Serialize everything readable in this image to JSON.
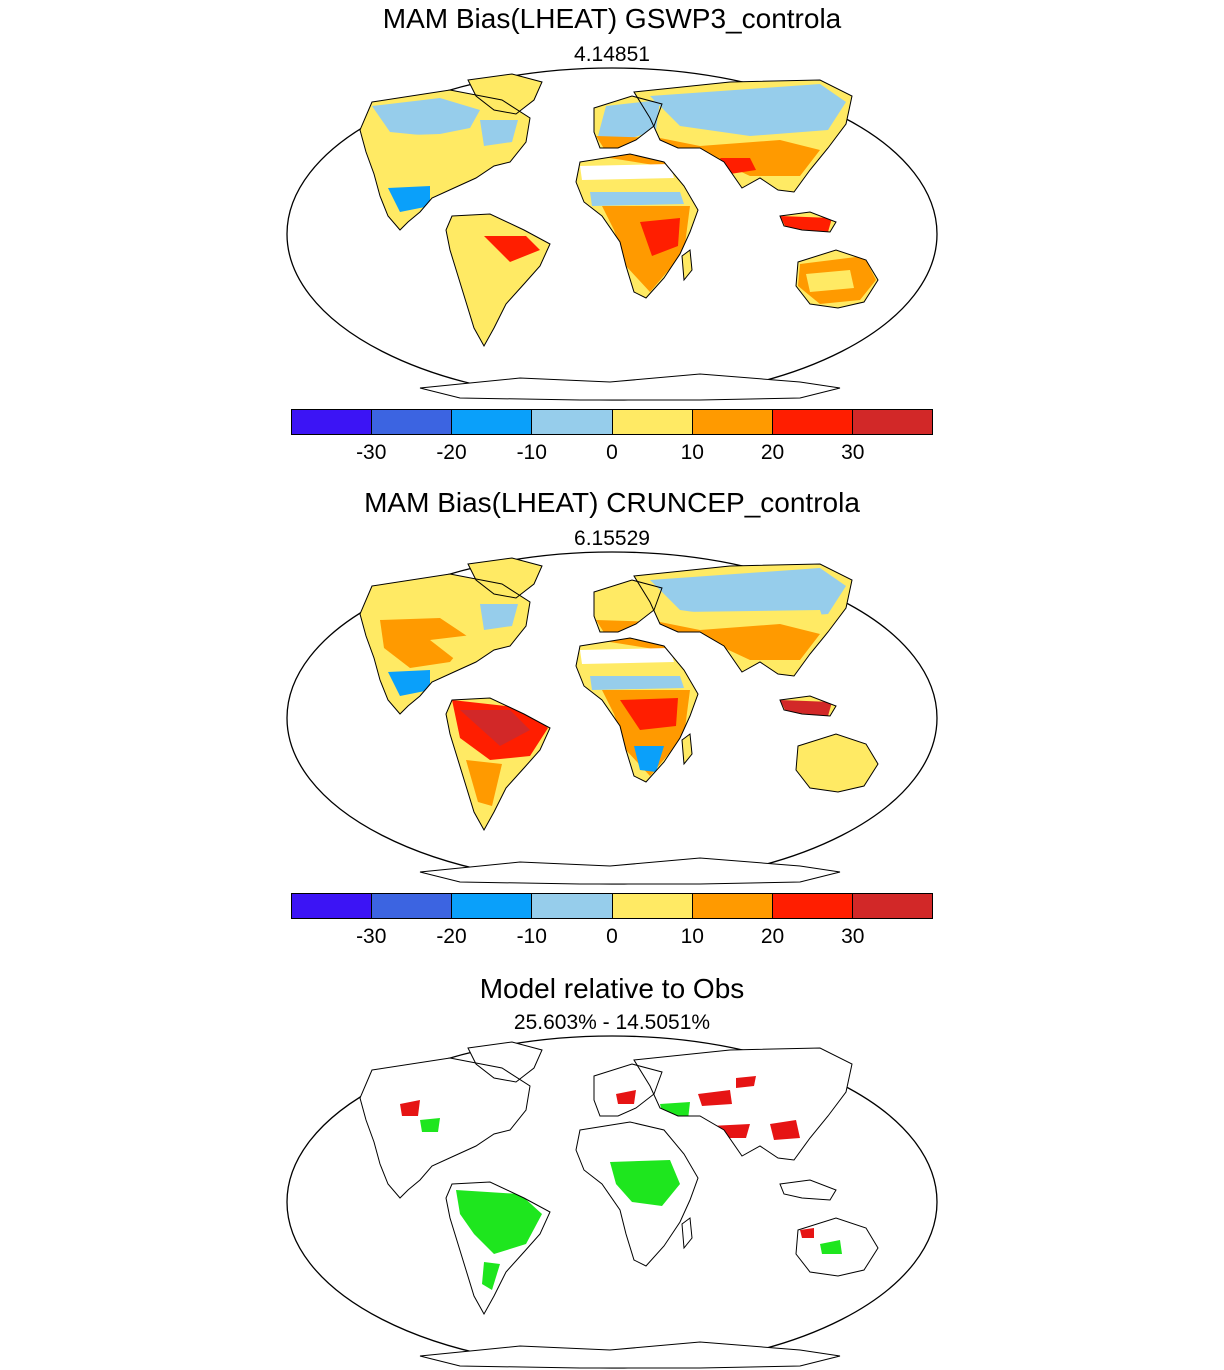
{
  "colors": {
    "bias_levels": [
      "#3c14f5",
      "#3c64e1",
      "#0aa0fa",
      "#96cdeb",
      "#ffea64",
      "#ff9a00",
      "#ff1e00",
      "#d22828"
    ],
    "relative": {
      "better": "#1ee61e",
      "worse": "#e61414"
    },
    "land_fill": "#ffffff",
    "outline": "#000000"
  },
  "panels": [
    {
      "title": "MAM Bias(LHEAT) GSWP3_controla",
      "subtitle": "4.14851",
      "map_type": "bias",
      "colorbar": {
        "ticks": [
          "-30",
          "-20",
          "-10",
          "0",
          "10",
          "20",
          "30"
        ]
      }
    },
    {
      "title": "MAM Bias(LHEAT) CRUNCEP_controla",
      "subtitle": "6.15529",
      "map_type": "bias",
      "colorbar": {
        "ticks": [
          "-30",
          "-20",
          "-10",
          "0",
          "10",
          "20",
          "30"
        ]
      }
    },
    {
      "title": "Model relative to Obs",
      "subtitle": "25.603% - 14.5051%",
      "map_type": "relative"
    }
  ]
}
